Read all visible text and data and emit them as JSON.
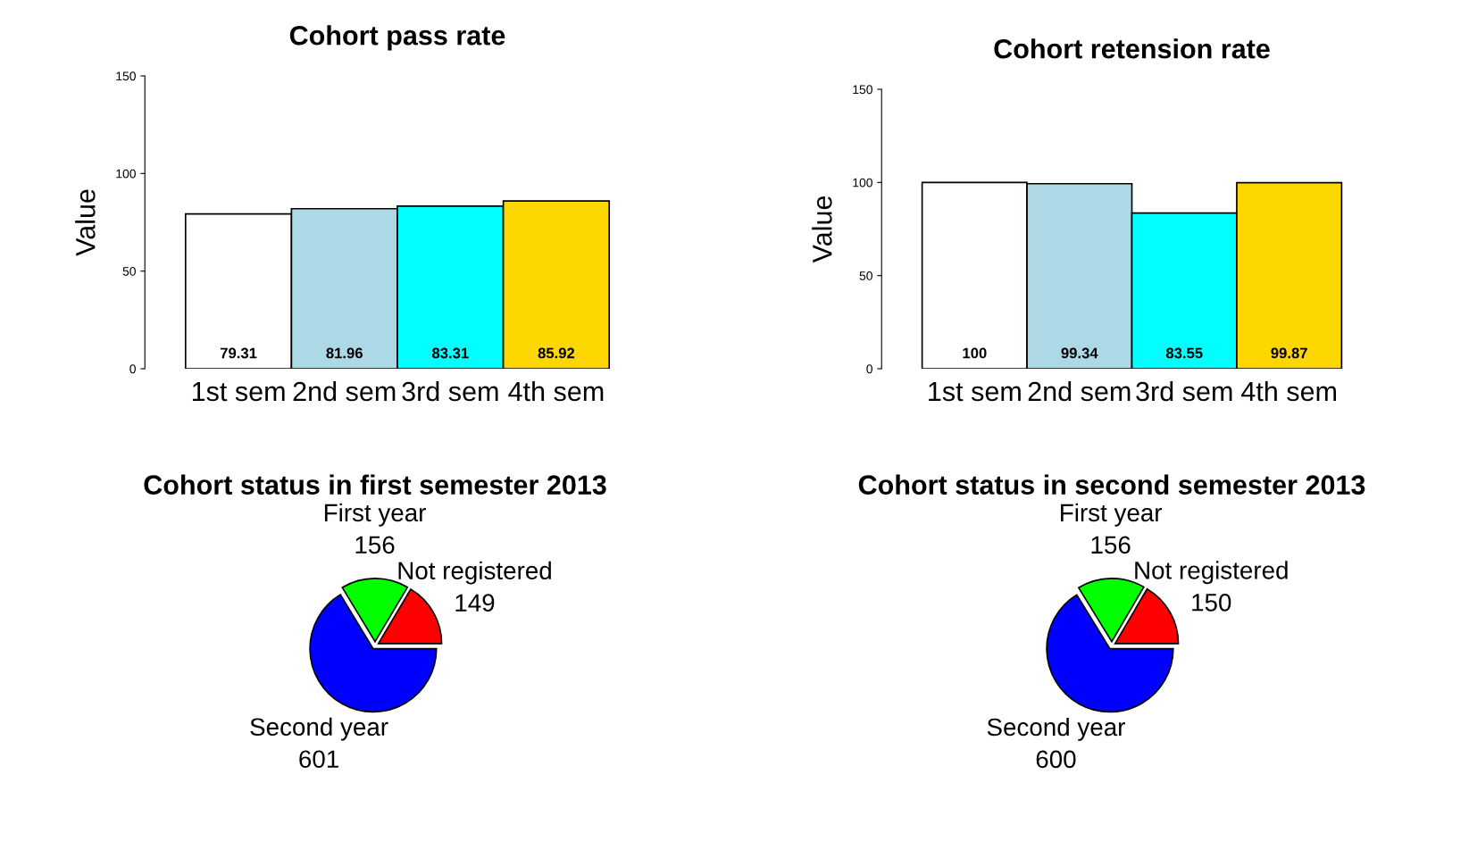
{
  "chart_data": [
    {
      "type": "bar",
      "title": "Cohort pass rate",
      "ylabel": "Value",
      "categories": [
        "1st sem",
        "2nd sem",
        "3rd sem",
        "4th sem"
      ],
      "values": [
        79.31,
        81.96,
        83.31,
        85.92
      ],
      "colors": [
        "#ffffff",
        "#add8e6",
        "#00ffff",
        "#ffd700"
      ],
      "ylim": [
        0,
        150
      ],
      "yticks": [
        0,
        50,
        100,
        150
      ],
      "data_labels": true,
      "grid": false,
      "legend": false
    },
    {
      "type": "bar",
      "title": "Cohort retension rate",
      "ylabel": "Value",
      "categories": [
        "1st sem",
        "2nd sem",
        "3rd sem",
        "4th sem"
      ],
      "values": [
        100,
        99.34,
        83.55,
        99.87
      ],
      "colors": [
        "#ffffff",
        "#add8e6",
        "#00ffff",
        "#ffd700"
      ],
      "ylim": [
        0,
        150
      ],
      "yticks": [
        0,
        50,
        100,
        150
      ],
      "data_labels": true,
      "grid": false,
      "legend": false
    },
    {
      "type": "pie",
      "title": "Cohort status in first semester 2013",
      "categories": [
        "Not registered",
        "First year",
        "Second year"
      ],
      "values": [
        149,
        156,
        601
      ],
      "colors": [
        "#ff0000",
        "#00ff00",
        "#0000ff"
      ],
      "data_labels": true,
      "legend": false
    },
    {
      "type": "pie",
      "title": "Cohort status in second semester 2013",
      "categories": [
        "Not registered",
        "First year",
        "Second year"
      ],
      "values": [
        150,
        156,
        600
      ],
      "colors": [
        "#ff0000",
        "#00ff00",
        "#0000ff"
      ],
      "data_labels": true,
      "legend": false
    }
  ]
}
